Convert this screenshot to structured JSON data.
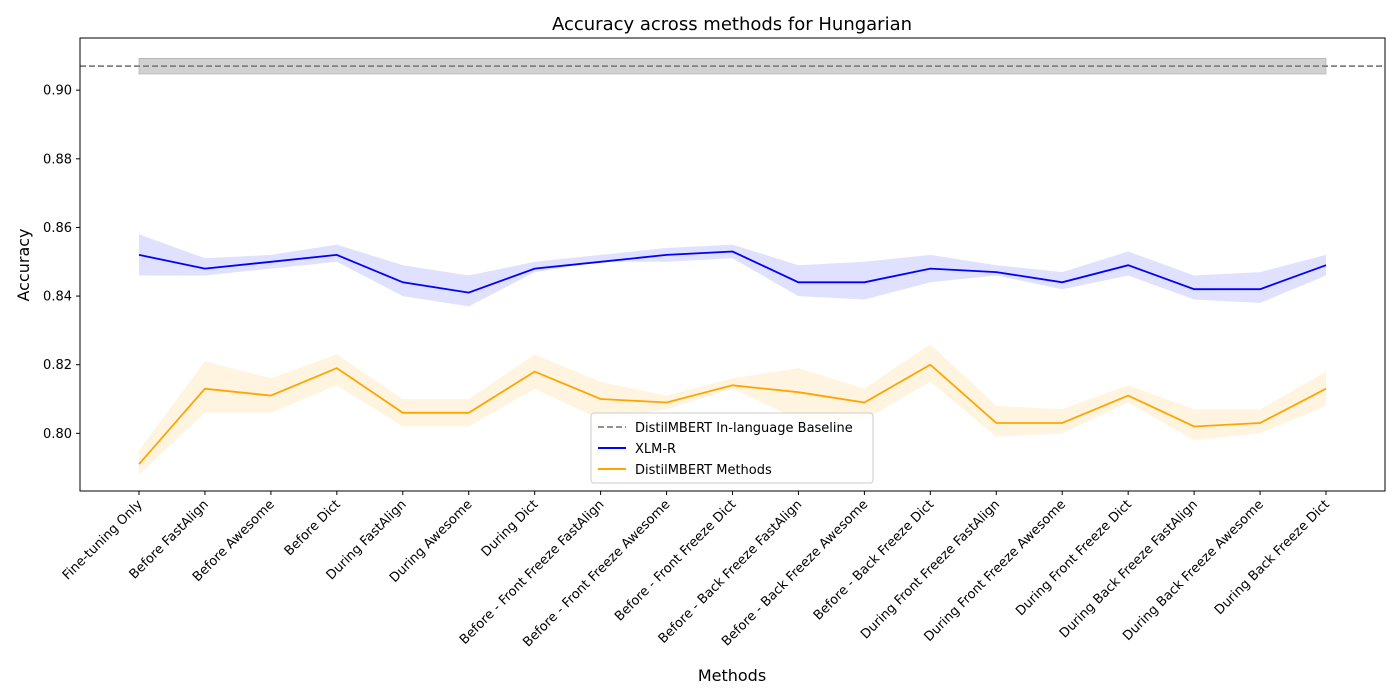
{
  "chart_data": {
    "type": "line",
    "title": "Accuracy across methods for Hungarian",
    "xlabel": "Methods",
    "ylabel": "Accuracy",
    "ylim": [
      0.7832,
      0.9152
    ],
    "yticks": [
      "0.80",
      "0.82",
      "0.84",
      "0.86",
      "0.88",
      "0.90"
    ],
    "categories": [
      "Fine-tuning Only",
      "Before FastAlign",
      "Before Awesome",
      "Before Dict",
      "During FastAlign",
      "During Awesome",
      "During Dict",
      "Before - Front Freeze FastAlign",
      "Before - Front Freeze Awesome",
      "Before - Front Freeze Dict",
      "Before - Back Freeze FastAlign",
      "Before - Back Freeze Awesome",
      "Before - Back Freeze Dict",
      "During Front Freeze FastAlign",
      "During Front Freeze Awesome",
      "During Front Freeze Dict",
      "During Back Freeze FastAlign",
      "During Back Freeze Awesome",
      "During Back Freeze Dict"
    ],
    "baseline": {
      "name": "DistilMBERT In-language Baseline",
      "value": 0.907,
      "band": [
        0.9047,
        0.9093
      ],
      "color": "#808080"
    },
    "series": [
      {
        "name": "XLM-R",
        "color": "#0000ff",
        "values": [
          0.852,
          0.848,
          0.85,
          0.852,
          0.844,
          0.841,
          0.848,
          0.85,
          0.852,
          0.853,
          0.844,
          0.844,
          0.848,
          0.847,
          0.844,
          0.849,
          0.842,
          0.842,
          0.849
        ],
        "upper": [
          0.858,
          0.851,
          0.852,
          0.855,
          0.849,
          0.846,
          0.85,
          0.852,
          0.854,
          0.855,
          0.849,
          0.85,
          0.852,
          0.849,
          0.847,
          0.853,
          0.846,
          0.847,
          0.852
        ],
        "lower": [
          0.846,
          0.846,
          0.848,
          0.85,
          0.84,
          0.837,
          0.847,
          0.85,
          0.85,
          0.851,
          0.84,
          0.839,
          0.844,
          0.846,
          0.842,
          0.846,
          0.839,
          0.838,
          0.846
        ]
      },
      {
        "name": "DistilMBERT Methods",
        "color": "#ffa500",
        "values": [
          0.791,
          0.813,
          0.811,
          0.819,
          0.806,
          0.806,
          0.818,
          0.81,
          0.809,
          0.814,
          0.812,
          0.809,
          0.82,
          0.803,
          0.803,
          0.811,
          0.802,
          0.803,
          0.813
        ],
        "upper": [
          0.795,
          0.821,
          0.816,
          0.823,
          0.81,
          0.81,
          0.823,
          0.815,
          0.811,
          0.816,
          0.819,
          0.813,
          0.826,
          0.808,
          0.807,
          0.814,
          0.807,
          0.807,
          0.818
        ],
        "lower": [
          0.788,
          0.806,
          0.806,
          0.814,
          0.802,
          0.802,
          0.813,
          0.804,
          0.807,
          0.813,
          0.804,
          0.804,
          0.815,
          0.799,
          0.8,
          0.809,
          0.798,
          0.8,
          0.808
        ]
      }
    ],
    "legend": {
      "position": "lower-center",
      "entries": [
        "DistilMBERT In-language Baseline",
        "XLM-R",
        "DistilMBERT Methods"
      ]
    },
    "grid": false
  }
}
